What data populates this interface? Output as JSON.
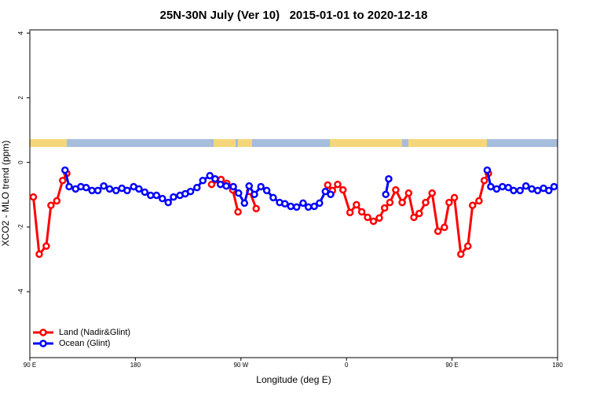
{
  "chart_data": {
    "type": "line",
    "title": "25N-30N July (Ver 10)   2015-01-01 to 2020-12-18",
    "x_label": "Longitude (deg E)",
    "y_label": "XCO2 - MLO trend (ppm)",
    "xlim": [
      90,
      540
    ],
    "xticks": [
      {
        "value": 90,
        "label": "90 E"
      },
      180,
      {
        "value": 270,
        "label": "90 W"
      },
      {
        "value": 360,
        "label": "0"
      },
      {
        "value": 450,
        "label": "90 E"
      },
      {
        "value": 540,
        "label": "180"
      }
    ],
    "ylim": [
      -6.04,
      4.1
    ],
    "yticks": [
      -4,
      -2,
      0,
      2,
      4
    ],
    "legend": "bottom-left",
    "series": [
      {
        "name": "Land (Nadir&Glint)",
        "color": "#ff0000",
        "x": [
          93,
          98,
          104,
          108,
          113,
          118,
          121.5,
          null,
          245,
          253,
          258,
          263,
          267.5,
          null,
          277.5,
          283,
          null,
          344,
          348,
          352.5,
          357,
          363,
          368.5,
          373,
          378,
          383,
          388,
          392.5,
          397,
          402,
          407.5,
          413,
          417.5,
          422,
          427.5,
          433,
          438,
          443.5,
          447.5,
          452,
          457.5,
          463.5,
          467.5,
          473,
          477.5,
          481
        ],
        "values": [
          -1.07,
          -2.84,
          -2.59,
          -1.33,
          -1.19,
          -0.56,
          -0.34,
          null,
          -0.68,
          -0.53,
          -0.65,
          -0.85,
          -1.53,
          null,
          -0.9,
          -1.43,
          null,
          -0.7,
          -0.87,
          -0.68,
          -0.85,
          -1.55,
          -1.31,
          -1.53,
          -1.7,
          -1.82,
          -1.72,
          -1.41,
          -1.24,
          -0.85,
          -1.24,
          -0.95,
          -1.7,
          -1.58,
          -1.24,
          -0.95,
          -2.13,
          -2.01,
          -1.24,
          -1.09,
          -2.84,
          -2.59,
          -1.33,
          -1.19,
          -0.56,
          -0.34
        ]
      },
      {
        "name": "Ocean (Glint)",
        "color": "#0000ff",
        "x": [
          120,
          123.5,
          129,
          133.5,
          138,
          143,
          148,
          153,
          158,
          163.5,
          168.5,
          173,
          178.5,
          183,
          188,
          193,
          198,
          203,
          208,
          212.5,
          218,
          222.5,
          227,
          232.5,
          237.5,
          243.5,
          248,
          252.5,
          257.5,
          263.5,
          268,
          273,
          277,
          281.5,
          287,
          292,
          297.5,
          303,
          307.5,
          312.5,
          317.5,
          323,
          327.5,
          332.5,
          337,
          342,
          346.5,
          null,
          393.5,
          396,
          null,
          480,
          483,
          488,
          493,
          498,
          502.5,
          508,
          513,
          518,
          523,
          528,
          532.5,
          537
        ],
        "values": [
          -0.24,
          -0.75,
          -0.82,
          -0.75,
          -0.78,
          -0.87,
          -0.87,
          -0.73,
          -0.82,
          -0.87,
          -0.8,
          -0.87,
          -0.75,
          -0.82,
          -0.92,
          -1.02,
          -1.02,
          -1.12,
          -1.24,
          -1.07,
          -1.02,
          -0.97,
          -0.9,
          -0.78,
          -0.56,
          -0.41,
          -0.51,
          -0.68,
          -0.73,
          -0.75,
          -0.95,
          -1.26,
          -0.73,
          -0.99,
          -0.75,
          -0.87,
          -1.09,
          -1.24,
          -1.28,
          -1.36,
          -1.38,
          -1.26,
          -1.38,
          -1.36,
          -1.26,
          -0.9,
          -0.99,
          null,
          -0.99,
          -0.51,
          null,
          -0.24,
          -0.75,
          -0.82,
          -0.75,
          -0.78,
          -0.87,
          -0.87,
          -0.73,
          -0.82,
          -0.87,
          -0.8,
          -0.87,
          -0.75
        ]
      }
    ]
  }
}
